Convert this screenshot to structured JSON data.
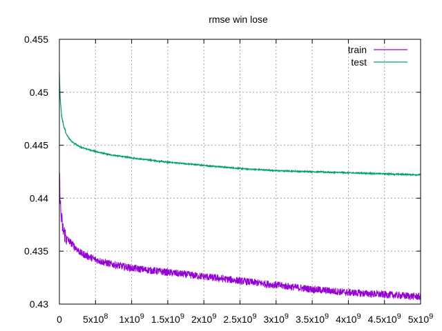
{
  "chart_data": {
    "type": "line",
    "title": "rmse win lose",
    "xlabel": "",
    "ylabel": "",
    "xlim": [
      0,
      5000000000
    ],
    "ylim": [
      0.43,
      0.455
    ],
    "grid": true,
    "legend_position": "top-right",
    "x_ticks": [
      {
        "value": 0,
        "label": "0"
      },
      {
        "value": 500000000,
        "label": "5x10^8"
      },
      {
        "value": 1000000000,
        "label": "1x10^9"
      },
      {
        "value": 1500000000,
        "label": "1.5x10^9"
      },
      {
        "value": 2000000000,
        "label": "2x10^9"
      },
      {
        "value": 2500000000,
        "label": "2.5x10^9"
      },
      {
        "value": 3000000000,
        "label": "3x10^9"
      },
      {
        "value": 3500000000,
        "label": "3.5x10^9"
      },
      {
        "value": 4000000000,
        "label": "4x10^9"
      },
      {
        "value": 4500000000,
        "label": "4.5x10^9"
      },
      {
        "value": 5000000000,
        "label": "5x10^9"
      }
    ],
    "y_ticks": [
      {
        "value": 0.43,
        "label": "0.43"
      },
      {
        "value": 0.435,
        "label": "0.435"
      },
      {
        "value": 0.44,
        "label": "0.44"
      },
      {
        "value": 0.445,
        "label": "0.445"
      },
      {
        "value": 0.45,
        "label": "0.45"
      },
      {
        "value": 0.455,
        "label": "0.455"
      }
    ],
    "series": [
      {
        "name": "train",
        "color": "#9400d3",
        "noise": 0.00035,
        "x": [
          0,
          20000000,
          50000000,
          100000000,
          200000000,
          300000000,
          500000000,
          700000000,
          1000000000,
          1500000000,
          2000000000,
          2500000000,
          3000000000,
          3500000000,
          4000000000,
          4500000000,
          5000000000
        ],
        "y": [
          0.4422,
          0.4385,
          0.437,
          0.4362,
          0.4355,
          0.4348,
          0.4342,
          0.4338,
          0.4334,
          0.433,
          0.4326,
          0.4322,
          0.4318,
          0.4314,
          0.4311,
          0.4309,
          0.4307
        ]
      },
      {
        "name": "test",
        "color": "#009e73",
        "noise": 5e-05,
        "x": [
          0,
          10000000,
          30000000,
          60000000,
          100000000,
          150000000,
          200000000,
          300000000,
          500000000,
          700000000,
          1000000000,
          1500000000,
          2000000000,
          2500000000,
          3000000000,
          3500000000,
          4000000000,
          4500000000,
          5000000000
        ],
        "y": [
          0.4518,
          0.4495,
          0.4478,
          0.4468,
          0.446,
          0.4455,
          0.4452,
          0.4448,
          0.4444,
          0.4441,
          0.4438,
          0.4434,
          0.4431,
          0.4428,
          0.4426,
          0.4425,
          0.4424,
          0.4423,
          0.4422
        ]
      }
    ]
  }
}
